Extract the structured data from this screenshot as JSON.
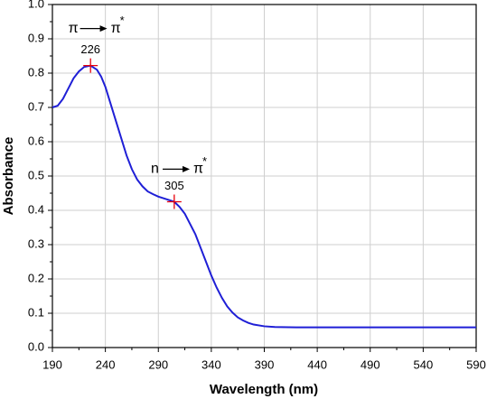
{
  "chart_data": {
    "type": "line",
    "xlabel": "Wavelength  (nm)",
    "ylabel": "Absorbance",
    "xlim": [
      190,
      590
    ],
    "ylim": [
      0,
      1
    ],
    "xticks": [
      190,
      240,
      290,
      340,
      390,
      440,
      490,
      540,
      590
    ],
    "yticks": [
      {
        "value": 0,
        "label": "0.0"
      },
      0.1,
      0.2,
      0.3,
      0.4,
      0.5,
      0.6,
      0.7,
      0.8,
      0.9,
      {
        "value": 1,
        "label": "1.0"
      }
    ],
    "grid": true,
    "x": [
      190,
      195,
      200,
      205,
      210,
      215,
      220,
      226,
      232,
      236,
      240,
      245,
      250,
      255,
      260,
      265,
      270,
      275,
      280,
      285,
      290,
      295,
      300,
      305,
      310,
      315,
      320,
      325,
      330,
      335,
      340,
      345,
      350,
      355,
      360,
      365,
      370,
      375,
      380,
      390,
      400,
      420,
      450,
      500,
      550,
      590
    ],
    "series": [
      {
        "color": "#1f1fd6",
        "values": [
          0.7,
          0.705,
          0.725,
          0.755,
          0.785,
          0.805,
          0.818,
          0.822,
          0.81,
          0.79,
          0.76,
          0.71,
          0.66,
          0.61,
          0.56,
          0.52,
          0.49,
          0.47,
          0.455,
          0.447,
          0.44,
          0.435,
          0.43,
          0.425,
          0.41,
          0.39,
          0.36,
          0.33,
          0.29,
          0.25,
          0.21,
          0.175,
          0.145,
          0.12,
          0.102,
          0.088,
          0.079,
          0.072,
          0.067,
          0.062,
          0.06,
          0.059,
          0.059,
          0.059,
          0.059,
          0.059
        ]
      }
    ],
    "peaks": {
      "color": "#e8000b",
      "x": [
        226,
        305
      ],
      "values": [
        0.822,
        0.425
      ]
    },
    "annotations": [
      {
        "from": "π",
        "to": "π",
        "sup": "*",
        "x": 205,
        "y": 0.93
      },
      {
        "from": "n",
        "to": "π",
        "sup": "*",
        "x": 283,
        "y": 0.52
      }
    ]
  }
}
